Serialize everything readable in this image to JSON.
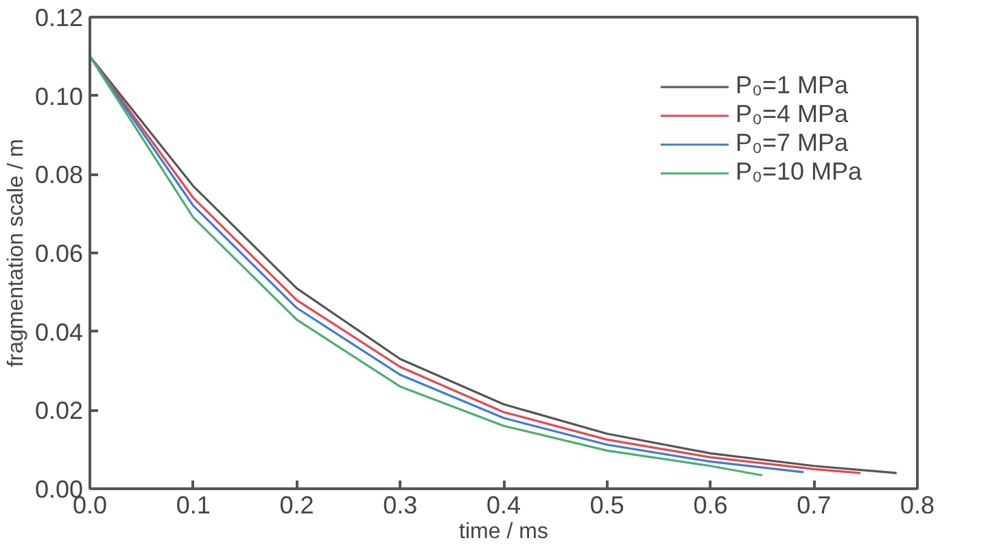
{
  "chart_data": {
    "type": "line",
    "xlabel": "time / ms",
    "ylabel": "fragmentation scale / m",
    "xlim": [
      0,
      0.8
    ],
    "ylim": [
      0,
      0.12
    ],
    "xticks": [
      {
        "value": 0,
        "label": "0.0"
      },
      {
        "value": 0.1,
        "label": "0.1"
      },
      {
        "value": 0.2,
        "label": "0.2"
      },
      {
        "value": 0.3,
        "label": "0.3"
      },
      {
        "value": 0.4,
        "label": "0.4"
      },
      {
        "value": 0.5,
        "label": "0.5"
      },
      {
        "value": 0.6,
        "label": "0.6"
      },
      {
        "value": 0.7,
        "label": "0.7"
      },
      {
        "value": 0.8,
        "label": "0.8"
      }
    ],
    "yticks": [
      {
        "value": 0,
        "label": "0.00"
      },
      {
        "value": 0.02,
        "label": "0.02"
      },
      {
        "value": 0.04,
        "label": "0.04"
      },
      {
        "value": 0.06,
        "label": "0.06"
      },
      {
        "value": 0.08,
        "label": "0.08"
      },
      {
        "value": 0.1,
        "label": "0.10"
      },
      {
        "value": 0.12,
        "label": "0.12"
      }
    ],
    "grid": false,
    "legend": "top right",
    "marker": "none",
    "line_style": "solid",
    "series": [
      {
        "name": "P₀=1 MPa",
        "color": "#555555",
        "x": [
          0,
          0.1,
          0.2,
          0.3,
          0.4,
          0.5,
          0.6,
          0.7,
          0.78
        ],
        "values": [
          0.11,
          0.077,
          0.051,
          0.033,
          0.0215,
          0.014,
          0.009,
          0.0058,
          0.004
        ]
      },
      {
        "name": "P₀=4 MPa",
        "color": "#e8474b",
        "x": [
          0,
          0.1,
          0.2,
          0.3,
          0.4,
          0.5,
          0.6,
          0.7,
          0.745
        ],
        "values": [
          0.11,
          0.074,
          0.048,
          0.031,
          0.0195,
          0.0125,
          0.008,
          0.005,
          0.004
        ]
      },
      {
        "name": "P₀=7 MPa",
        "color": "#3b7dd8",
        "x": [
          0,
          0.1,
          0.2,
          0.3,
          0.4,
          0.5,
          0.6,
          0.69
        ],
        "values": [
          0.11,
          0.072,
          0.046,
          0.029,
          0.018,
          0.0112,
          0.0069,
          0.0042
        ]
      },
      {
        "name": "P₀=10 MPa",
        "color": "#4caf6e",
        "x": [
          0,
          0.1,
          0.2,
          0.3,
          0.4,
          0.5,
          0.6,
          0.65
        ],
        "values": [
          0.11,
          0.069,
          0.043,
          0.026,
          0.016,
          0.0097,
          0.0058,
          0.0034
        ]
      }
    ]
  }
}
